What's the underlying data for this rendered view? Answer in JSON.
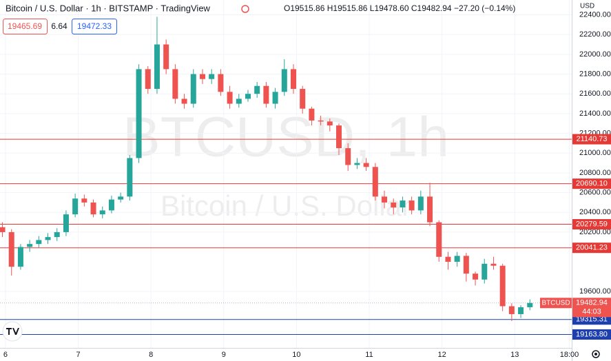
{
  "header": {
    "title": "Bitcoin / U.S. Dollar · 1h · BITSTAMP · TradingView",
    "open": "O19515.86",
    "high": "H19515.86",
    "low": "L19478.60",
    "close": "C19482.94",
    "change": "−27.20 (−0.14%)"
  },
  "quote": {
    "bid": "19465.69",
    "spread": "6.64",
    "ask": "19472.33"
  },
  "watermark": {
    "symbol": "BTCUSD, 1h",
    "name": "Bitcoin / U.S. Dollar"
  },
  "currency": "USD",
  "chart_data": {
    "type": "candlestick",
    "up_color": "#26a69a",
    "down_color": "#ef5350",
    "x": [
      -1,
      2,
      5,
      8,
      11,
      14,
      17,
      20,
      23,
      26,
      29,
      32,
      35,
      38,
      41,
      44,
      47,
      50,
      53,
      56,
      59,
      62,
      65,
      68,
      71,
      74,
      77,
      80,
      83,
      86,
      89,
      92,
      95,
      98,
      101,
      104,
      107,
      110,
      113,
      116,
      119,
      122,
      125,
      128,
      131,
      134,
      137,
      140,
      143,
      146,
      149,
      152,
      155,
      158,
      161,
      164,
      167,
      170,
      173
    ],
    "open": [
      20250,
      20200,
      19850,
      20050,
      20080,
      20120,
      20150,
      20200,
      20380,
      20540,
      20500,
      20380,
      20420,
      20530,
      20560,
      20950,
      21850,
      21650,
      22100,
      21850,
      21550,
      21500,
      21800,
      21750,
      21800,
      21620,
      21500,
      21550,
      21600,
      21680,
      21500,
      21620,
      21850,
      21650,
      21450,
      21330,
      21320,
      21280,
      21050,
      20880,
      20900,
      20860,
      20560,
      20500,
      20450,
      20520,
      20420,
      20560,
      20300,
      19950,
      19900,
      19960,
      19780,
      19720,
      19880,
      19860,
      19450,
      19370,
      19440
    ],
    "high": [
      20300,
      20230,
      20080,
      20120,
      20160,
      20190,
      20240,
      20420,
      20590,
      20580,
      20530,
      20460,
      20570,
      20600,
      20980,
      21900,
      21880,
      22380,
      22150,
      21900,
      21600,
      21850,
      21850,
      21850,
      21850,
      21680,
      21600,
      21640,
      21720,
      21720,
      21660,
      21950,
      21900,
      21680,
      21470,
      21380,
      21350,
      21300,
      21100,
      20950,
      20950,
      20900,
      20620,
      20540,
      20560,
      20560,
      20620,
      20700,
      20320,
      20000,
      20000,
      19990,
      19800,
      19930,
      19950,
      19880,
      19480,
      19460,
      19520
    ],
    "low": [
      20150,
      19760,
      19820,
      20000,
      20040,
      20080,
      20110,
      20160,
      20350,
      20460,
      20350,
      20340,
      20390,
      20500,
      20520,
      20900,
      21600,
      21600,
      21800,
      21500,
      21450,
      21460,
      21700,
      21700,
      21580,
      21450,
      21460,
      21520,
      21560,
      21460,
      21450,
      21580,
      21600,
      21400,
      21280,
      21280,
      21220,
      20980,
      20820,
      20840,
      20820,
      20520,
      20440,
      20380,
      20400,
      20380,
      20380,
      20260,
      19900,
      19820,
      19850,
      19700,
      19660,
      19680,
      19820,
      19400,
      19300,
      19330,
      19410
    ],
    "close": [
      20200,
      19850,
      20050,
      20080,
      20120,
      20150,
      20200,
      20380,
      20540,
      20500,
      20380,
      20420,
      20530,
      20560,
      20950,
      21850,
      21650,
      22100,
      21850,
      21550,
      21500,
      21800,
      21750,
      21800,
      21620,
      21500,
      21550,
      21600,
      21680,
      21500,
      21620,
      21850,
      21650,
      21450,
      21330,
      21320,
      21280,
      21050,
      20880,
      20900,
      20860,
      20560,
      20500,
      20450,
      20520,
      20420,
      20560,
      20300,
      19950,
      19900,
      19960,
      19780,
      19720,
      19880,
      19860,
      19450,
      19370,
      19440,
      19483
    ],
    "xlim": [
      -1.8,
      186.8
    ],
    "xticks": [
      {
        "value": 0,
        "label": "6"
      },
      {
        "value": 24,
        "label": "7"
      },
      {
        "value": 48,
        "label": "8"
      },
      {
        "value": 72,
        "label": "9"
      },
      {
        "value": 96,
        "label": "10"
      },
      {
        "value": 120,
        "label": "11"
      },
      {
        "value": 144,
        "label": "12"
      },
      {
        "value": 168,
        "label": "13"
      },
      {
        "value": 186,
        "label": "18:00"
      }
    ],
    "ylim": [
      19028,
      22550
    ],
    "yticks": [
      {
        "value": 19600,
        "label": "19600.00"
      },
      {
        "value": 20200,
        "label": "20200.00"
      },
      {
        "value": 20400,
        "label": "20400.00"
      },
      {
        "value": 20600,
        "label": "20600.00"
      },
      {
        "value": 20800,
        "label": "20800.00"
      },
      {
        "value": 21000,
        "label": "21000.00"
      },
      {
        "value": 21200,
        "label": "21200.00"
      },
      {
        "value": 21400,
        "label": "21400.00"
      },
      {
        "value": 21600,
        "label": "21600.00"
      },
      {
        "value": 21800,
        "label": "21800.00"
      },
      {
        "value": 22000,
        "label": "22000.00"
      },
      {
        "value": 22200,
        "label": "22200.00"
      },
      {
        "value": 22400,
        "label": "22400.00"
      }
    ],
    "grid": true,
    "levels": [
      {
        "value": 21140.73,
        "label": "21140.73",
        "color": "#e53935"
      },
      {
        "value": 20690.1,
        "label": "20690.10",
        "color": "#e53935"
      },
      {
        "value": 20279.59,
        "label": "20279.59",
        "color": "#e53935"
      },
      {
        "value": 20041.23,
        "label": "20041.23",
        "color": "#e53935"
      },
      {
        "value": 19315.31,
        "label": "19315.31",
        "color": "#1e40af"
      },
      {
        "value": 19163.8,
        "label": "19163.80",
        "color": "#1e40af"
      }
    ],
    "last": {
      "symbol": "BTCUSD",
      "value": 19482.94,
      "countdown": "44:03",
      "color": "#ef5350"
    }
  }
}
